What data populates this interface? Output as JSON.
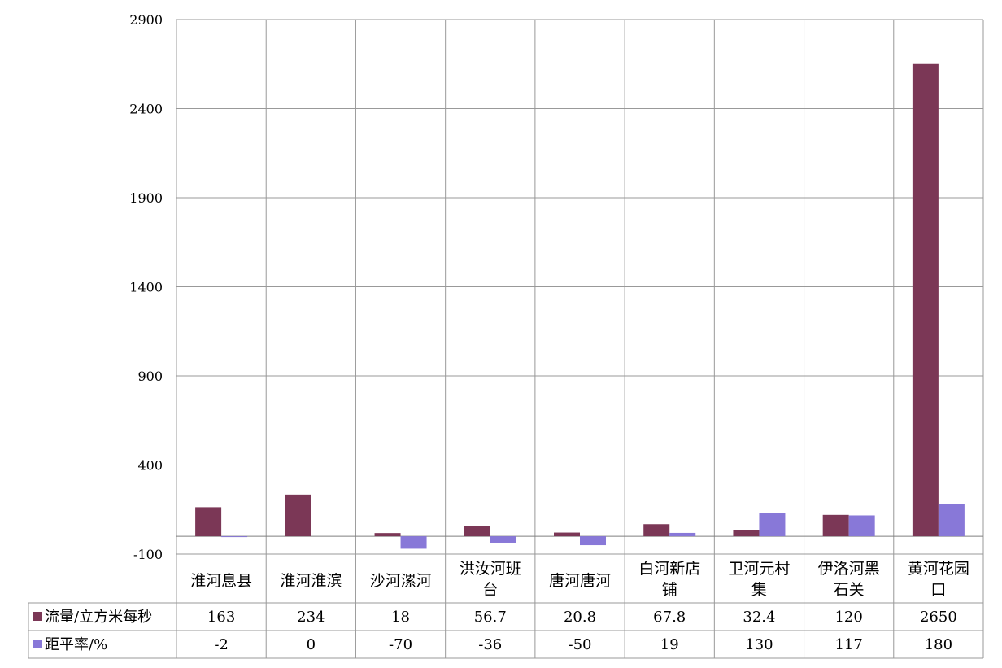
{
  "chart_data": {
    "type": "bar",
    "categories": [
      [
        "淮河息县"
      ],
      [
        "淮河淮滨"
      ],
      [
        "沙河漯河"
      ],
      [
        "洪汝河班",
        "台"
      ],
      [
        "唐河唐河"
      ],
      [
        "白河新店",
        "铺"
      ],
      [
        "卫河元村",
        "集"
      ],
      [
        "伊洛河黑",
        "石关"
      ],
      [
        "黄河花园",
        "口"
      ]
    ],
    "series": [
      {
        "name": "流量/立方米每秒",
        "color": "#7b3756",
        "values": [
          163,
          234,
          18,
          56.7,
          20.8,
          67.8,
          32.4,
          120,
          2650
        ],
        "labels": [
          "163",
          "234",
          "18",
          "56.7",
          "20.8",
          "67.8",
          "32.4",
          "120",
          "2650"
        ]
      },
      {
        "name": "距平率/%",
        "color": "#8878d8",
        "values": [
          -2,
          0,
          -70,
          -36,
          -50,
          19,
          130,
          117,
          180
        ],
        "labels": [
          "-2",
          "0",
          "-70",
          "-36",
          "-50",
          "19",
          "130",
          "117",
          "180"
        ]
      }
    ],
    "ylim": [
      -100,
      2900
    ],
    "yticks": [
      -100,
      400,
      900,
      1400,
      1900,
      2400,
      2900
    ],
    "grid": true,
    "data_table": true,
    "legend": "data table"
  }
}
